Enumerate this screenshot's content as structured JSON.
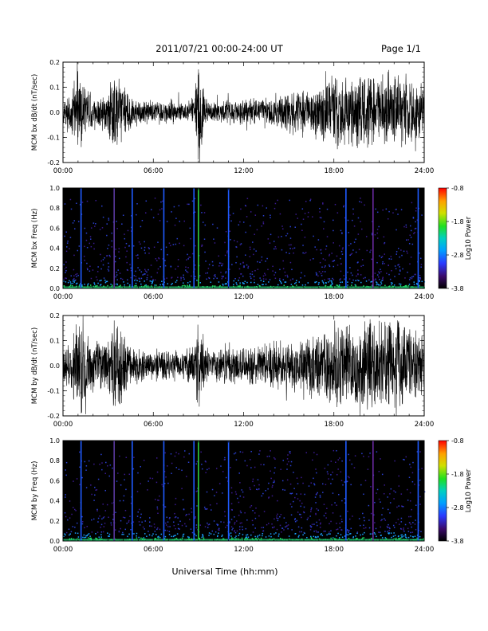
{
  "header": {
    "title": "2011/07/21  00:00-24:00 UT",
    "page": "Page 1/1"
  },
  "xlabel": "Universal Time (hh:mm)",
  "chart_data": [
    {
      "type": "line",
      "ylabel": "MCM bx dB/dt (nT/sec)",
      "xlim": [
        0,
        24
      ],
      "ylim": [
        -0.2,
        0.2
      ],
      "x_ticks": [
        "00:00",
        "06:00",
        "12:00",
        "18:00",
        "24:00"
      ],
      "y_ticks": [
        "-0.2",
        "-0.1",
        "0.0",
        "0.1",
        "0.2"
      ],
      "envelope": {
        "hours": [
          0,
          0.5,
          1,
          1.5,
          2,
          2.5,
          3,
          3.3,
          3.7,
          4,
          4.5,
          5,
          6,
          7,
          8,
          8.7,
          9,
          9.5,
          10,
          11,
          12,
          13,
          14,
          15,
          16,
          17,
          18,
          19,
          20,
          21,
          22,
          23,
          24
        ],
        "amplitude": [
          0.05,
          0.07,
          0.16,
          0.1,
          0.07,
          0.06,
          0.09,
          0.15,
          0.18,
          0.1,
          0.06,
          0.05,
          0.04,
          0.05,
          0.04,
          0.06,
          0.2,
          0.05,
          0.04,
          0.05,
          0.05,
          0.05,
          0.06,
          0.08,
          0.09,
          0.1,
          0.14,
          0.12,
          0.15,
          0.13,
          0.15,
          0.12,
          0.1
        ]
      }
    },
    {
      "type": "heatmap",
      "ylabel": "MCM bx Freq (Hz)",
      "xlim": [
        0,
        24
      ],
      "ylim": [
        0.0,
        1.0
      ],
      "x_ticks": [
        "00:00",
        "06:00",
        "12:00",
        "18:00",
        "24:00"
      ],
      "y_ticks": [
        "0.0",
        "0.2",
        "0.4",
        "0.6",
        "0.8",
        "1.0"
      ],
      "colorbar": {
        "label": "Log10 Power",
        "ticks": [
          "-0.8",
          "-1.8",
          "-2.8",
          "-3.8"
        ],
        "range": [
          -3.8,
          -0.8
        ]
      },
      "stripes": [
        {
          "hour": 1.2,
          "color": "#1f5bff"
        },
        {
          "hour": 3.4,
          "color": "#5a3aa0"
        },
        {
          "hour": 4.6,
          "color": "#1f5bff"
        },
        {
          "hour": 6.7,
          "color": "#1f5bff"
        },
        {
          "hour": 8.7,
          "color": "#1f5bff"
        },
        {
          "hour": 9.0,
          "color": "#2fd040"
        },
        {
          "hour": 11.0,
          "color": "#1f5bff"
        },
        {
          "hour": 18.8,
          "color": "#1f5bff"
        },
        {
          "hour": 20.6,
          "color": "#6a2aa0"
        },
        {
          "hour": 23.6,
          "color": "#1f5bff"
        }
      ]
    },
    {
      "type": "line",
      "ylabel": "MCM by dB/dt (nT/sec)",
      "xlim": [
        0,
        24
      ],
      "ylim": [
        -0.2,
        0.2
      ],
      "x_ticks": [
        "00:00",
        "06:00",
        "12:00",
        "18:00",
        "24:00"
      ],
      "y_ticks": [
        "-0.2",
        "-0.1",
        "0.0",
        "0.1",
        "0.2"
      ],
      "envelope": {
        "hours": [
          0,
          0.5,
          1,
          1.5,
          2,
          2.5,
          3,
          3.3,
          3.7,
          4,
          4.5,
          5,
          6,
          7,
          8,
          8.7,
          9,
          9.5,
          10,
          11,
          12,
          13,
          14,
          15,
          16,
          17,
          18,
          19,
          20,
          21,
          22,
          23,
          24
        ],
        "amplitude": [
          0.06,
          0.1,
          0.2,
          0.15,
          0.1,
          0.1,
          0.1,
          0.18,
          0.2,
          0.12,
          0.08,
          0.06,
          0.05,
          0.07,
          0.05,
          0.08,
          0.2,
          0.07,
          0.06,
          0.08,
          0.07,
          0.08,
          0.09,
          0.1,
          0.11,
          0.12,
          0.16,
          0.15,
          0.18,
          0.15,
          0.18,
          0.15,
          0.12
        ]
      }
    },
    {
      "type": "heatmap",
      "ylabel": "MCM by Freq (Hz)",
      "xlim": [
        0,
        24
      ],
      "ylim": [
        0.0,
        1.0
      ],
      "x_ticks": [
        "00:00",
        "06:00",
        "12:00",
        "18:00",
        "24:00"
      ],
      "y_ticks": [
        "0.0",
        "0.2",
        "0.4",
        "0.6",
        "0.8",
        "1.0"
      ],
      "colorbar": {
        "label": "Log10 Power",
        "ticks": [
          "-0.8",
          "-1.8",
          "-2.8",
          "-3.8"
        ],
        "range": [
          -3.8,
          -0.8
        ]
      },
      "stripes": [
        {
          "hour": 1.2,
          "color": "#1f5bff"
        },
        {
          "hour": 3.4,
          "color": "#5a3aa0"
        },
        {
          "hour": 4.6,
          "color": "#1f5bff"
        },
        {
          "hour": 6.7,
          "color": "#1f5bff"
        },
        {
          "hour": 8.7,
          "color": "#1f5bff"
        },
        {
          "hour": 9.0,
          "color": "#2fd040"
        },
        {
          "hour": 11.0,
          "color": "#1f5bff"
        },
        {
          "hour": 18.8,
          "color": "#1f5bff"
        },
        {
          "hour": 20.6,
          "color": "#6a2aa0"
        },
        {
          "hour": 23.6,
          "color": "#1f5bff"
        }
      ]
    }
  ]
}
